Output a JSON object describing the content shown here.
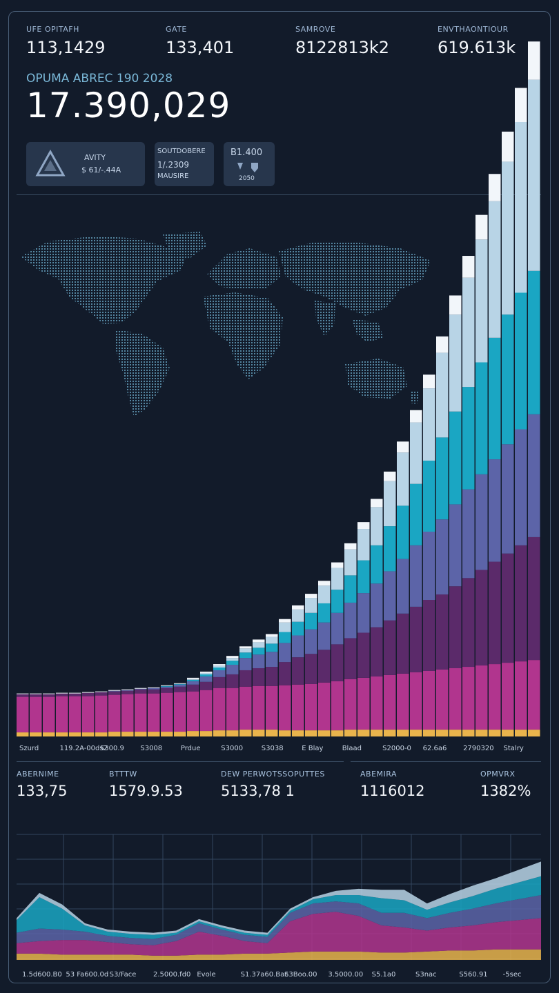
{
  "top_stats": [
    {
      "label": "UFE OPITAFH",
      "value": "113,1429"
    },
    {
      "label": "GATE",
      "value": "133,401"
    },
    {
      "label": "SAMROVE",
      "value": "8122813k2"
    },
    {
      "label": "ENVTHAONTIOUR",
      "value": "619.613k"
    }
  ],
  "hero": {
    "label": "OPUMA ABREC 190 2028",
    "value": "17.390,029"
  },
  "cards": [
    {
      "line1": "AVITY",
      "line2": "$ 61/-.44A"
    },
    {
      "line1": "SOUTDOBERE",
      "line2": "1/.2309",
      "line3": "MAUSIRE"
    },
    {
      "line1": "B1.400",
      "line2": "2050"
    }
  ],
  "mid_stats": [
    {
      "label": "ABERNIME",
      "value": "133,75"
    },
    {
      "label": "BTTTW",
      "value": "1579.9.53"
    },
    {
      "label": "DEW PERWOTSSOPUTTES",
      "value": "5133,78 1"
    },
    {
      "label": "ABEMIRA",
      "value": "1116012"
    },
    {
      "label": "OPMVRX",
      "value": "1382%"
    }
  ],
  "colors": {
    "bg": "#121b2a",
    "magenta": "#b1358e",
    "purple": "#5b2a6a",
    "slate": "#5c64a8",
    "teal": "#1aa6c3",
    "ice": "#b8d4e6",
    "white": "#f2f6fa",
    "gold": "#e9b44c"
  },
  "chart_data": [
    {
      "type": "bar",
      "stacked": true,
      "x_tick_labels": [
        "Szurd",
        "119.2A-00ds2",
        "S300.9",
        "S3008",
        "Prdue",
        "S3000",
        "S3038",
        "E Blay",
        "Blaad",
        "S2000-0",
        "62.6a6",
        "2790320",
        "Stalry"
      ],
      "series": [
        {
          "color": "#e9b44c",
          "values": [
            6,
            6,
            6,
            6,
            6,
            6,
            6,
            7,
            7,
            7,
            7,
            7,
            7,
            8,
            8,
            9,
            9,
            10,
            10,
            10,
            9,
            9,
            9,
            9,
            9,
            10,
            10,
            10,
            10,
            10,
            10,
            10,
            10,
            10,
            10,
            10,
            10,
            10,
            10,
            10
          ]
        },
        {
          "color": "#b1358e",
          "values": [
            52,
            52,
            52,
            53,
            53,
            53,
            54,
            54,
            55,
            56,
            56,
            57,
            58,
            58,
            60,
            62,
            62,
            63,
            64,
            64,
            66,
            67,
            68,
            70,
            72,
            74,
            76,
            78,
            80,
            82,
            84,
            86,
            88,
            90,
            92,
            94,
            96,
            98,
            100,
            102
          ]
        },
        {
          "color": "#5b2a6a",
          "values": [
            4,
            4,
            4,
            4,
            4,
            5,
            5,
            5,
            5,
            6,
            6,
            7,
            8,
            10,
            12,
            16,
            20,
            24,
            26,
            28,
            34,
            40,
            44,
            48,
            54,
            60,
            66,
            72,
            80,
            88,
            96,
            104,
            110,
            120,
            130,
            140,
            150,
            160,
            170,
            180
          ]
        },
        {
          "color": "#5c64a8",
          "values": [
            0,
            0,
            0,
            0,
            0,
            0,
            0,
            1,
            1,
            1,
            2,
            2,
            3,
            5,
            8,
            10,
            14,
            18,
            20,
            22,
            28,
            32,
            36,
            40,
            46,
            52,
            58,
            64,
            72,
            80,
            90,
            100,
            110,
            120,
            130,
            140,
            150,
            160,
            170,
            180
          ]
        },
        {
          "color": "#1aa6c3",
          "values": [
            0,
            0,
            0,
            0,
            0,
            0,
            0,
            0,
            0,
            0,
            0,
            1,
            1,
            2,
            3,
            4,
            6,
            8,
            10,
            12,
            16,
            20,
            24,
            28,
            34,
            40,
            48,
            56,
            66,
            78,
            90,
            104,
            120,
            136,
            150,
            164,
            178,
            190,
            200,
            210
          ]
        },
        {
          "color": "#b8d4e6",
          "values": [
            0,
            0,
            0,
            0,
            0,
            0,
            0,
            0,
            0,
            0,
            0,
            0,
            0,
            1,
            2,
            3,
            4,
            6,
            8,
            10,
            14,
            18,
            22,
            26,
            32,
            38,
            46,
            56,
            66,
            78,
            90,
            106,
            124,
            142,
            160,
            180,
            200,
            224,
            250,
            280
          ]
        },
        {
          "color": "#f2f6fa",
          "values": [
            1,
            1,
            1,
            1,
            1,
            1,
            1,
            1,
            1,
            1,
            1,
            1,
            1,
            2,
            2,
            2,
            3,
            3,
            4,
            4,
            5,
            6,
            6,
            7,
            8,
            9,
            10,
            12,
            14,
            16,
            18,
            20,
            24,
            28,
            32,
            36,
            40,
            44,
            50,
            56
          ]
        }
      ]
    },
    {
      "type": "area",
      "stacked": true,
      "x_tick_labels": [
        "1.5d600.B0",
        "53 Fa600.0d",
        "S3/Face",
        "2.5000.fd0",
        "Evole",
        "S1.37a60.Bac",
        "S3Boo.00",
        "3.5000.00",
        "S5.1a0",
        "S3nac",
        "S560.91",
        "-5sec"
      ],
      "series": [
        {
          "color": "#e9b44c",
          "values": [
            6,
            6,
            5,
            5,
            5,
            5,
            4,
            4,
            5,
            5,
            6,
            6,
            7,
            8,
            8,
            8,
            7,
            7,
            8,
            9,
            9,
            10,
            10,
            10
          ]
        },
        {
          "color": "#b1358e",
          "values": [
            10,
            12,
            14,
            14,
            12,
            10,
            10,
            14,
            22,
            18,
            12,
            10,
            30,
            36,
            38,
            34,
            26,
            24,
            20,
            22,
            24,
            26,
            28,
            30
          ]
        },
        {
          "color": "#5c64a8",
          "values": [
            10,
            12,
            10,
            8,
            6,
            6,
            6,
            6,
            8,
            6,
            6,
            6,
            8,
            10,
            10,
            12,
            12,
            14,
            12,
            14,
            16,
            18,
            20,
            22
          ]
        },
        {
          "color": "#1aa6c3",
          "values": [
            12,
            30,
            20,
            6,
            4,
            4,
            4,
            2,
            2,
            2,
            2,
            2,
            2,
            4,
            6,
            8,
            14,
            12,
            8,
            10,
            12,
            14,
            16,
            18
          ]
        },
        {
          "color": "#b8d4e6",
          "values": [
            2,
            4,
            4,
            2,
            2,
            2,
            2,
            2,
            2,
            2,
            2,
            2,
            2,
            2,
            4,
            6,
            8,
            10,
            6,
            8,
            10,
            10,
            12,
            14
          ]
        }
      ]
    }
  ]
}
